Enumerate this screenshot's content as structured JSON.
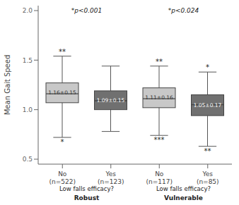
{
  "chart_data": {
    "type": "box",
    "ylabel": "Mean Gait Speed",
    "categories": [
      "No\n(n=522)",
      "Yes\n(n=123)",
      "No\n(n=117)",
      "Yes\n(n=85)"
    ],
    "q1": [
      1.07,
      1.0,
      1.02,
      0.94
    ],
    "median": [
      1.16,
      1.09,
      1.11,
      1.05
    ],
    "q3": [
      1.27,
      1.19,
      1.22,
      1.15
    ],
    "whisker_low": [
      0.72,
      0.78,
      0.74,
      0.63
    ],
    "whisker_high": [
      1.54,
      1.44,
      1.44,
      1.38
    ],
    "mean_labels": [
      "1.16±0.15",
      "1.09±0.15",
      "1.11±0.16",
      "1.05±0.17"
    ],
    "colors": [
      "#c8c8c8",
      "#707070",
      "#c8c8c8",
      "#707070"
    ],
    "outliers_low": [
      "*",
      null,
      "***",
      "**"
    ],
    "outliers_high": [
      "**",
      null,
      "**",
      "*"
    ],
    "groups": [
      "Robust",
      "Robust",
      "Vulnerable",
      "Vulnerable"
    ],
    "group_labels": [
      {
        "name": "Robust",
        "title": "Low falls efficacy?",
        "annotation": "*p<0.001"
      },
      {
        "name": "Vulnerable",
        "title": "Low falls efficacy?",
        "annotation": "*p<0.024"
      }
    ],
    "ylim": [
      0.45,
      2.05
    ],
    "yticks": [
      0.5,
      {
        "value": 1,
        "label": "1.0"
      },
      1.5,
      {
        "value": 2,
        "label": "2.0"
      }
    ]
  }
}
